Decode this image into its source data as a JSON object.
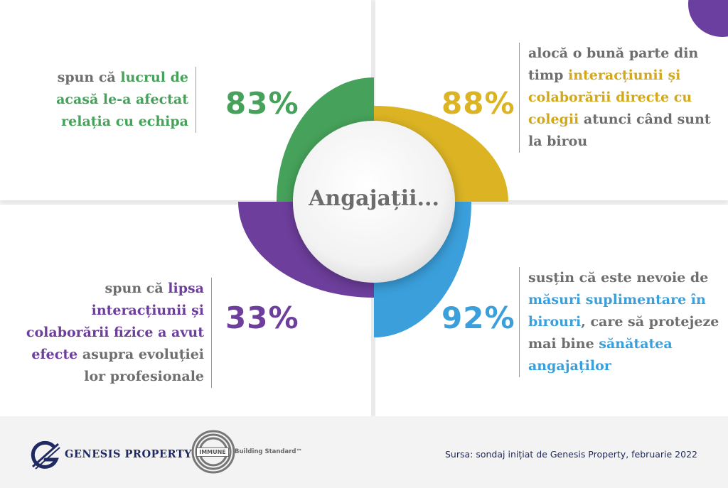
{
  "center_label": "Angajații...",
  "colors": {
    "green": "#46a25a",
    "yellow": "#dcb423",
    "purple": "#6d3e9c",
    "blue": "#3a9fdb",
    "gray_text": "#6e6e6e",
    "navy": "#1f2a63"
  },
  "quadrants": {
    "top_left": {
      "percent": "83%",
      "parts": [
        "spun că ",
        "lucrul de acasă le-a afectat relația cu echipa"
      ]
    },
    "top_right": {
      "percent": "88%",
      "parts": [
        "alocă o bună parte din timp ",
        "interacțiunii și colaborării directe cu colegii",
        " atunci când sunt la birou"
      ]
    },
    "bottom_left": {
      "percent": "33%",
      "parts": [
        "spun că ",
        "lipsa interacțiunii și colaborării fizice a avut efecte",
        " asupra evoluției lor profesionale"
      ]
    },
    "bottom_right": {
      "percent": "92%",
      "parts": [
        "susțin că este nevoie de ",
        "măsuri suplimentare în birouri",
        ", care să protejeze mai bine ",
        "sănătatea angajaților"
      ]
    }
  },
  "footer": {
    "genesis_logo_icon": "genesis-g-logo-icon",
    "genesis_name": "GENESIS PROPERTY",
    "immune_word": "IMMUNE",
    "immune_standard": "Building Standard™",
    "source": "Sursa: sondaj inițiat de Genesis Property, februarie 2022"
  }
}
